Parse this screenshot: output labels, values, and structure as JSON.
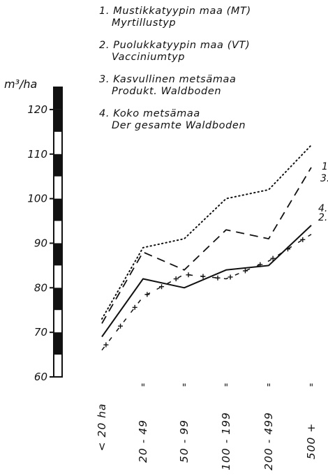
{
  "chart_data": {
    "type": "line",
    "title": "",
    "ylabel": "m³/ha",
    "xlabel": "",
    "ylim": [
      60,
      125
    ],
    "yticks": [
      60,
      70,
      80,
      90,
      100,
      110,
      120
    ],
    "categories": [
      "< 20 ha",
      "20 - 49",
      "50 - 99",
      "100 - 199",
      "200 - 499",
      "500 +"
    ],
    "category_ditto_mark": "\"",
    "grid": false,
    "legend": {
      "placement": "top",
      "entries": [
        {
          "line1": "1. Mustikkatyypin maa (MT)",
          "line2": "Myrtillustyp"
        },
        {
          "line1": "2. Puolukkatyypin maa (VT)",
          "line2": "Vacciniumtyp"
        },
        {
          "line1": "3. Kasvullinen metsämaa",
          "line2": "Produkt. Waldboden"
        },
        {
          "line1": "4. Koko metsämaa",
          "line2": "Der gesamte Waldboden"
        }
      ]
    },
    "series": [
      {
        "name": "1.",
        "style": "dotted",
        "values": [
          73,
          89,
          91,
          100,
          102,
          112
        ]
      },
      {
        "name": "2.",
        "style": "dash-cross",
        "values": [
          66,
          78,
          83,
          82,
          86,
          92
        ]
      },
      {
        "name": "3.",
        "style": "dashed",
        "values": [
          72,
          88,
          84,
          93,
          91,
          107
        ]
      },
      {
        "name": "4.",
        "style": "solid",
        "values": [
          69,
          82,
          80,
          84,
          85,
          94
        ]
      }
    ]
  }
}
